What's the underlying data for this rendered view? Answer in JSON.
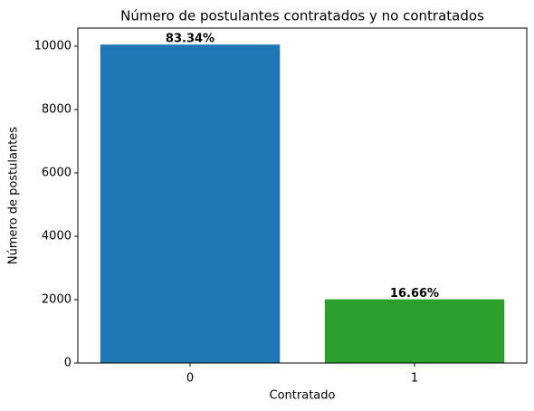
{
  "chart_data": {
    "type": "bar",
    "title": "Número de postulantes contratados y no contratados",
    "xlabel": "Contratado",
    "ylabel": "Número de postulantes",
    "categories": [
      "0",
      "1"
    ],
    "values": [
      10050,
      2010
    ],
    "colors": [
      "#1f77b4",
      "#2ca02c"
    ],
    "percentages": {
      "values": [
        83.34,
        16.66
      ],
      "value_labels": [
        "83.34%",
        "16.66%"
      ]
    },
    "ylim": [
      0,
      10571
    ],
    "yticks": [
      0,
      2000,
      4000,
      6000,
      8000,
      10000
    ]
  }
}
